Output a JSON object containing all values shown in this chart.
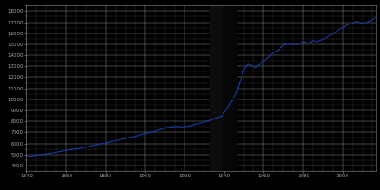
{
  "background_color": "#000000",
  "grid_major_color": "#888888",
  "grid_minor_color": "#444444",
  "line_color": "#1a3aaa",
  "text_color": "#aaaaaa",
  "xlim": [
    1840,
    2017
  ],
  "ylim": [
    3500,
    18500
  ],
  "ytick_interval": 1000,
  "xtick_major": [
    1840,
    1860,
    1880,
    1900,
    1920,
    1940,
    1960,
    1980,
    2000
  ],
  "xtick_minor_step": 5,
  "ytick_major": [
    4000,
    5000,
    6000,
    7000,
    8000,
    9000,
    10000,
    11000,
    12000,
    13000,
    14000,
    15000,
    16000,
    17000,
    18000
  ],
  "bar1_xmin": 1933,
  "bar1_xmax": 1939,
  "bar2_xmin": 1939,
  "bar2_xmax": 1946,
  "data": [
    [
      1840,
      4800
    ],
    [
      1846,
      4950
    ],
    [
      1852,
      5100
    ],
    [
      1855,
      5200
    ],
    [
      1861,
      5400
    ],
    [
      1867,
      5550
    ],
    [
      1871,
      5700
    ],
    [
      1875,
      5850
    ],
    [
      1880,
      6050
    ],
    [
      1885,
      6250
    ],
    [
      1890,
      6450
    ],
    [
      1895,
      6650
    ],
    [
      1900,
      6900
    ],
    [
      1905,
      7100
    ],
    [
      1910,
      7400
    ],
    [
      1916,
      7550
    ],
    [
      1919,
      7450
    ],
    [
      1925,
      7700
    ],
    [
      1933,
      8100
    ],
    [
      1939,
      8500
    ],
    [
      1946,
      10500
    ],
    [
      1950,
      12700
    ],
    [
      1952,
      13200
    ],
    [
      1956,
      12900
    ],
    [
      1961,
      13600
    ],
    [
      1964,
      14100
    ],
    [
      1967,
      14400
    ],
    [
      1970,
      14900
    ],
    [
      1972,
      15100
    ],
    [
      1975,
      14950
    ],
    [
      1978,
      15050
    ],
    [
      1980,
      15250
    ],
    [
      1983,
      15100
    ],
    [
      1985,
      15350
    ],
    [
      1987,
      15250
    ],
    [
      1990,
      15450
    ],
    [
      1993,
      15750
    ],
    [
      1995,
      15950
    ],
    [
      1997,
      16200
    ],
    [
      2000,
      16500
    ],
    [
      2002,
      16750
    ],
    [
      2005,
      16900
    ],
    [
      2007,
      17100
    ],
    [
      2009,
      16950
    ],
    [
      2011,
      16850
    ],
    [
      2013,
      17050
    ],
    [
      2015,
      17250
    ],
    [
      2017,
      17450
    ]
  ],
  "figsize": [
    4.2,
    2.1
  ],
  "dpi": 100
}
